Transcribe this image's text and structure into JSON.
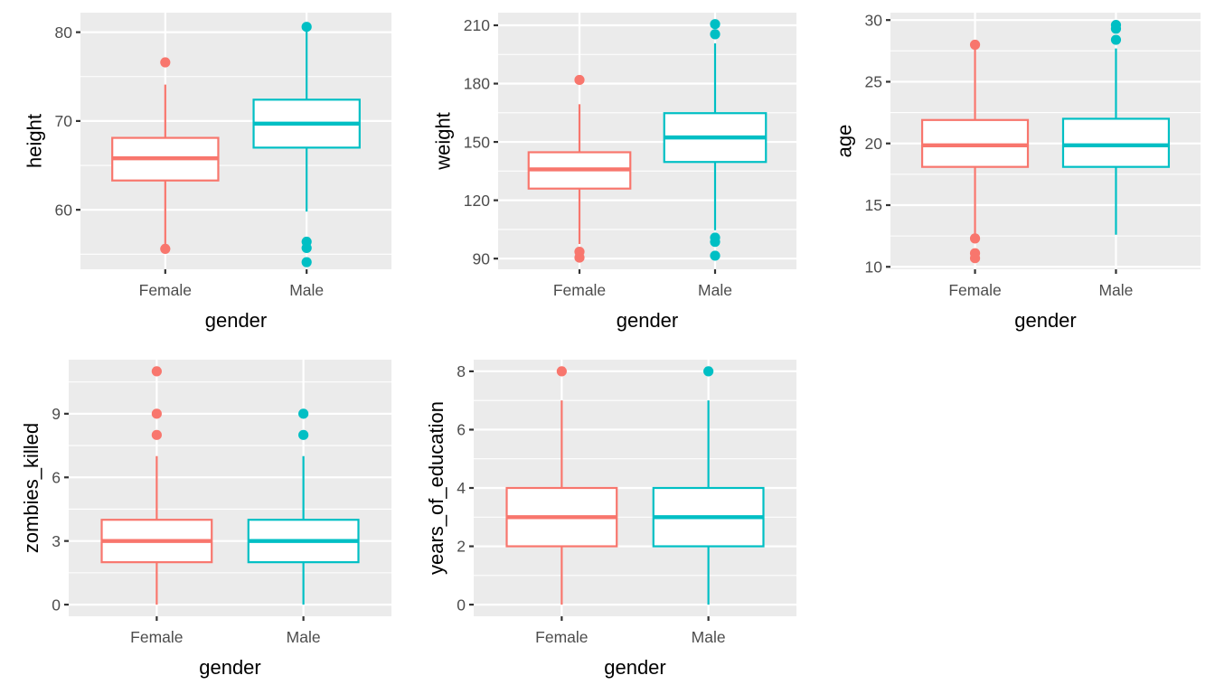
{
  "figure": {
    "background": "#FFFFFF",
    "panel_background": "#EBEBEB",
    "grid_color": "#FFFFFF",
    "fill_color": "#FFFFFF",
    "group_colors": {
      "Female": "#F8766D",
      "Male": "#00BFC4"
    }
  },
  "chart_data": [
    {
      "type": "boxplot",
      "xlabel": "gender",
      "ylabel": "height",
      "categories": [
        "Female",
        "Male"
      ],
      "yticks": [
        60,
        70,
        80
      ],
      "yminor": [
        55,
        65,
        75
      ],
      "ylim": [
        53.3,
        82.2
      ],
      "grid": true,
      "series": [
        {
          "name": "Female",
          "whisker_low": 55.6,
          "q1": 63.3,
          "median": 65.8,
          "q3": 68.1,
          "whisker_high": 74.1,
          "outliers": [
            76.6,
            55.6
          ]
        },
        {
          "name": "Male",
          "whisker_low": 59.8,
          "q1": 67.0,
          "median": 69.7,
          "q3": 72.4,
          "whisker_high": 80.6,
          "outliers": [
            80.6,
            56.4,
            55.7,
            54.1
          ]
        }
      ]
    },
    {
      "type": "boxplot",
      "xlabel": "gender",
      "ylabel": "weight",
      "categories": [
        "Female",
        "Male"
      ],
      "yticks": [
        90,
        120,
        150,
        180,
        210
      ],
      "yminor": [
        105,
        135,
        165,
        195
      ],
      "ylim": [
        84.5,
        216.5
      ],
      "grid": true,
      "series": [
        {
          "name": "Female",
          "whisker_low": 97.5,
          "q1": 126.0,
          "median": 135.9,
          "q3": 144.7,
          "whisker_high": 169.4,
          "outliers": [
            181.9,
            93.5,
            90.5
          ]
        },
        {
          "name": "Male",
          "whisker_low": 104.6,
          "q1": 139.7,
          "median": 152.3,
          "q3": 164.8,
          "whisker_high": 200.7,
          "outliers": [
            210.6,
            205.4,
            100.8,
            98.6,
            91.5
          ]
        }
      ]
    },
    {
      "type": "boxplot",
      "xlabel": "gender",
      "ylabel": "age",
      "categories": [
        "Female",
        "Male"
      ],
      "yticks": [
        10,
        15,
        20,
        25,
        30
      ],
      "yminor": [
        12.5,
        17.5,
        22.5,
        27.5
      ],
      "ylim": [
        9.8,
        30.6
      ],
      "grid": true,
      "series": [
        {
          "name": "Female",
          "whisker_low": 12.3,
          "q1": 18.1,
          "median": 19.85,
          "q3": 21.9,
          "whisker_high": 28.0,
          "outliers": [
            28.0,
            12.3,
            11.1,
            10.7
          ]
        },
        {
          "name": "Male",
          "whisker_low": 12.6,
          "q1": 18.1,
          "median": 19.85,
          "q3": 22.0,
          "whisker_high": 27.7,
          "outliers": [
            29.6,
            29.3,
            28.4
          ]
        }
      ]
    },
    {
      "type": "boxplot",
      "xlabel": "gender",
      "ylabel": "zombies_killed",
      "categories": [
        "Female",
        "Male"
      ],
      "yticks": [
        0,
        3,
        6,
        9
      ],
      "yminor": [
        1.5,
        4.5,
        7.5,
        10.5
      ],
      "ylim": [
        -0.55,
        11.55
      ],
      "grid": true,
      "series": [
        {
          "name": "Female",
          "whisker_low": 0,
          "q1": 2,
          "median": 3,
          "q3": 4,
          "whisker_high": 7,
          "outliers": [
            11,
            9,
            8
          ]
        },
        {
          "name": "Male",
          "whisker_low": 0,
          "q1": 2,
          "median": 3,
          "q3": 4,
          "whisker_high": 7,
          "outliers": [
            9,
            8
          ]
        }
      ]
    },
    {
      "type": "boxplot",
      "xlabel": "gender",
      "ylabel": "years_of_education",
      "categories": [
        "Female",
        "Male"
      ],
      "yticks": [
        0,
        2,
        4,
        6,
        8
      ],
      "yminor": [
        1,
        3,
        5,
        7
      ],
      "ylim": [
        -0.4,
        8.4
      ],
      "grid": true,
      "series": [
        {
          "name": "Female",
          "whisker_low": 0,
          "q1": 2,
          "median": 3,
          "q3": 4,
          "whisker_high": 7,
          "outliers": [
            8
          ]
        },
        {
          "name": "Male",
          "whisker_low": 0,
          "q1": 2,
          "median": 3,
          "q3": 4,
          "whisker_high": 7,
          "outliers": [
            8
          ]
        }
      ]
    }
  ]
}
